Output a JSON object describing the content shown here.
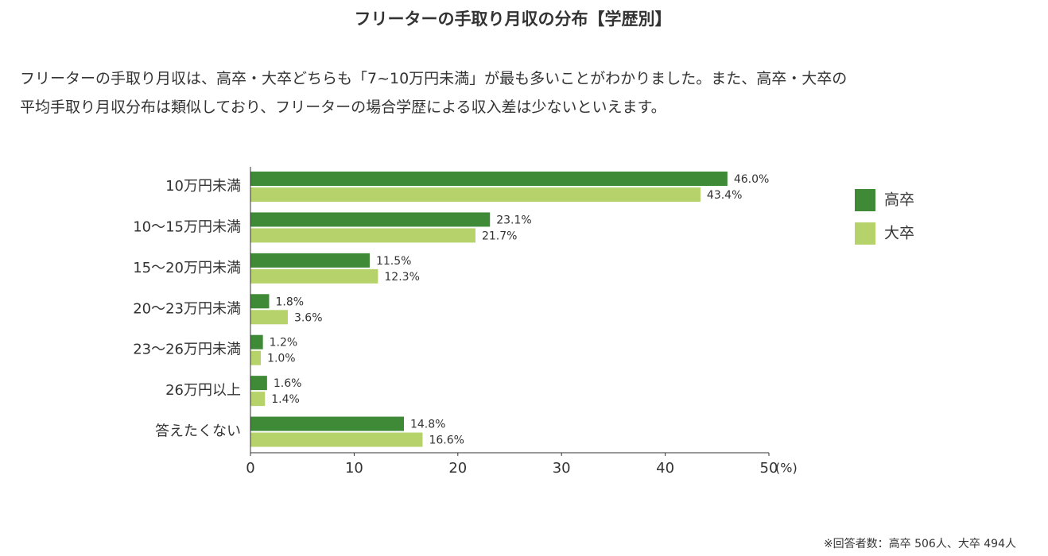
{
  "title": "フリーターの手取り月収の分布【学歴別】",
  "intro": [
    "フリーターの手取り月収は、高卒・大卒どちらも「7~10万円未満」が最も多いことがわかりました。また、高卒・大卒の",
    "平均手取り月収分布は類似しており、フリーターの場合学歴による収入差は少ないといえます。"
  ],
  "chart_data": {
    "type": "bar",
    "orientation": "horizontal",
    "categories": [
      "10万円未満",
      "10～15万円未満",
      "15～20万円未満",
      "20～23万円未満",
      "23～26万円未満",
      "26万円以上",
      "答えたくない"
    ],
    "series": [
      {
        "name": "高卒",
        "color": "#3f8a37",
        "values": [
          46.0,
          23.1,
          11.5,
          1.8,
          1.2,
          1.6,
          14.8
        ],
        "value_labels": [
          "46.0%",
          "23.1%",
          "11.5%",
          "1.8%",
          "1.2%",
          "1.6%",
          "14.8%"
        ]
      },
      {
        "name": "大卒",
        "color": "#b5d36a",
        "values": [
          43.4,
          21.7,
          12.3,
          3.6,
          1.0,
          1.4,
          16.6
        ],
        "value_labels": [
          "43.4%",
          "21.7%",
          "12.3%",
          "3.6%",
          "1.0%",
          "1.4%",
          "16.6%"
        ]
      }
    ],
    "xlim": [
      0,
      50
    ],
    "xticks": [
      0,
      10,
      20,
      30,
      40,
      50
    ],
    "x_unit": "(%)",
    "legend": "right"
  },
  "footnote": "※回答者数：高卒 506人、大卒 494人"
}
